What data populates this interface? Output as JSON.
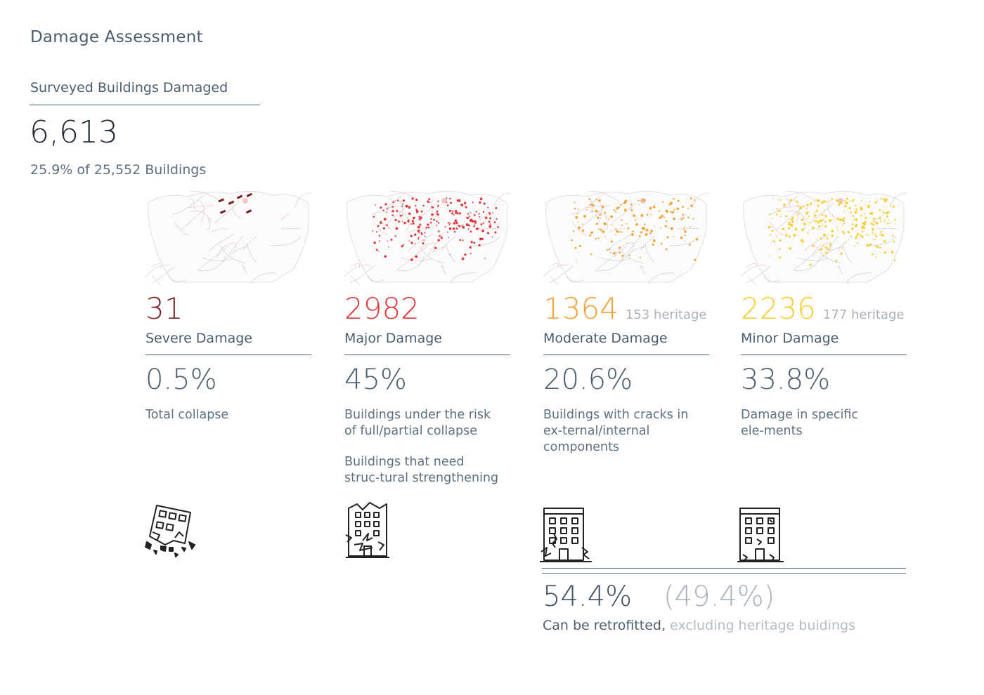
{
  "page": {
    "title": "Damage Assessment"
  },
  "summary": {
    "label": "Surveyed Buildings Damaged",
    "count": "6,613",
    "subtitle": "25.9% of 25,552 Buildings"
  },
  "categories": [
    {
      "count": "31",
      "heritage": "",
      "label": "Severe Damage",
      "percent": "0.5%",
      "description": "Total collapse",
      "description2": "",
      "color": "#7a1f25",
      "icon": "collapsed-building-icon"
    },
    {
      "count": "2982",
      "heritage": "",
      "label": "Major Damage",
      "percent": "45%",
      "description": "Buildings under the risk of full/partial collapse",
      "description2": "Buildings that need struc-tural strengthening",
      "color": "#e03a3e",
      "icon": "crumbling-building-icon"
    },
    {
      "count": "1364",
      "heritage": "153 heritage",
      "label": "Moderate Damage",
      "percent": "20.6%",
      "description": "Buildings with cracks in ex-ternal/internal components",
      "description2": "",
      "color": "#f2a33a",
      "icon": "cracked-building-icon"
    },
    {
      "count": "2236",
      "heritage": "177 heritage",
      "label": "Minor Damage",
      "percent": "33.8%",
      "description": "Damage in specific ele-ments",
      "description2": "",
      "color": "#f6cf3a",
      "icon": "slightly-damaged-building-icon"
    }
  ],
  "retrofit": {
    "percent": "54.4%",
    "percent_excluding_heritage": "(49.4%)",
    "label": "Can be retrofitted,",
    "label_light": "excluding heritage buidings"
  }
}
